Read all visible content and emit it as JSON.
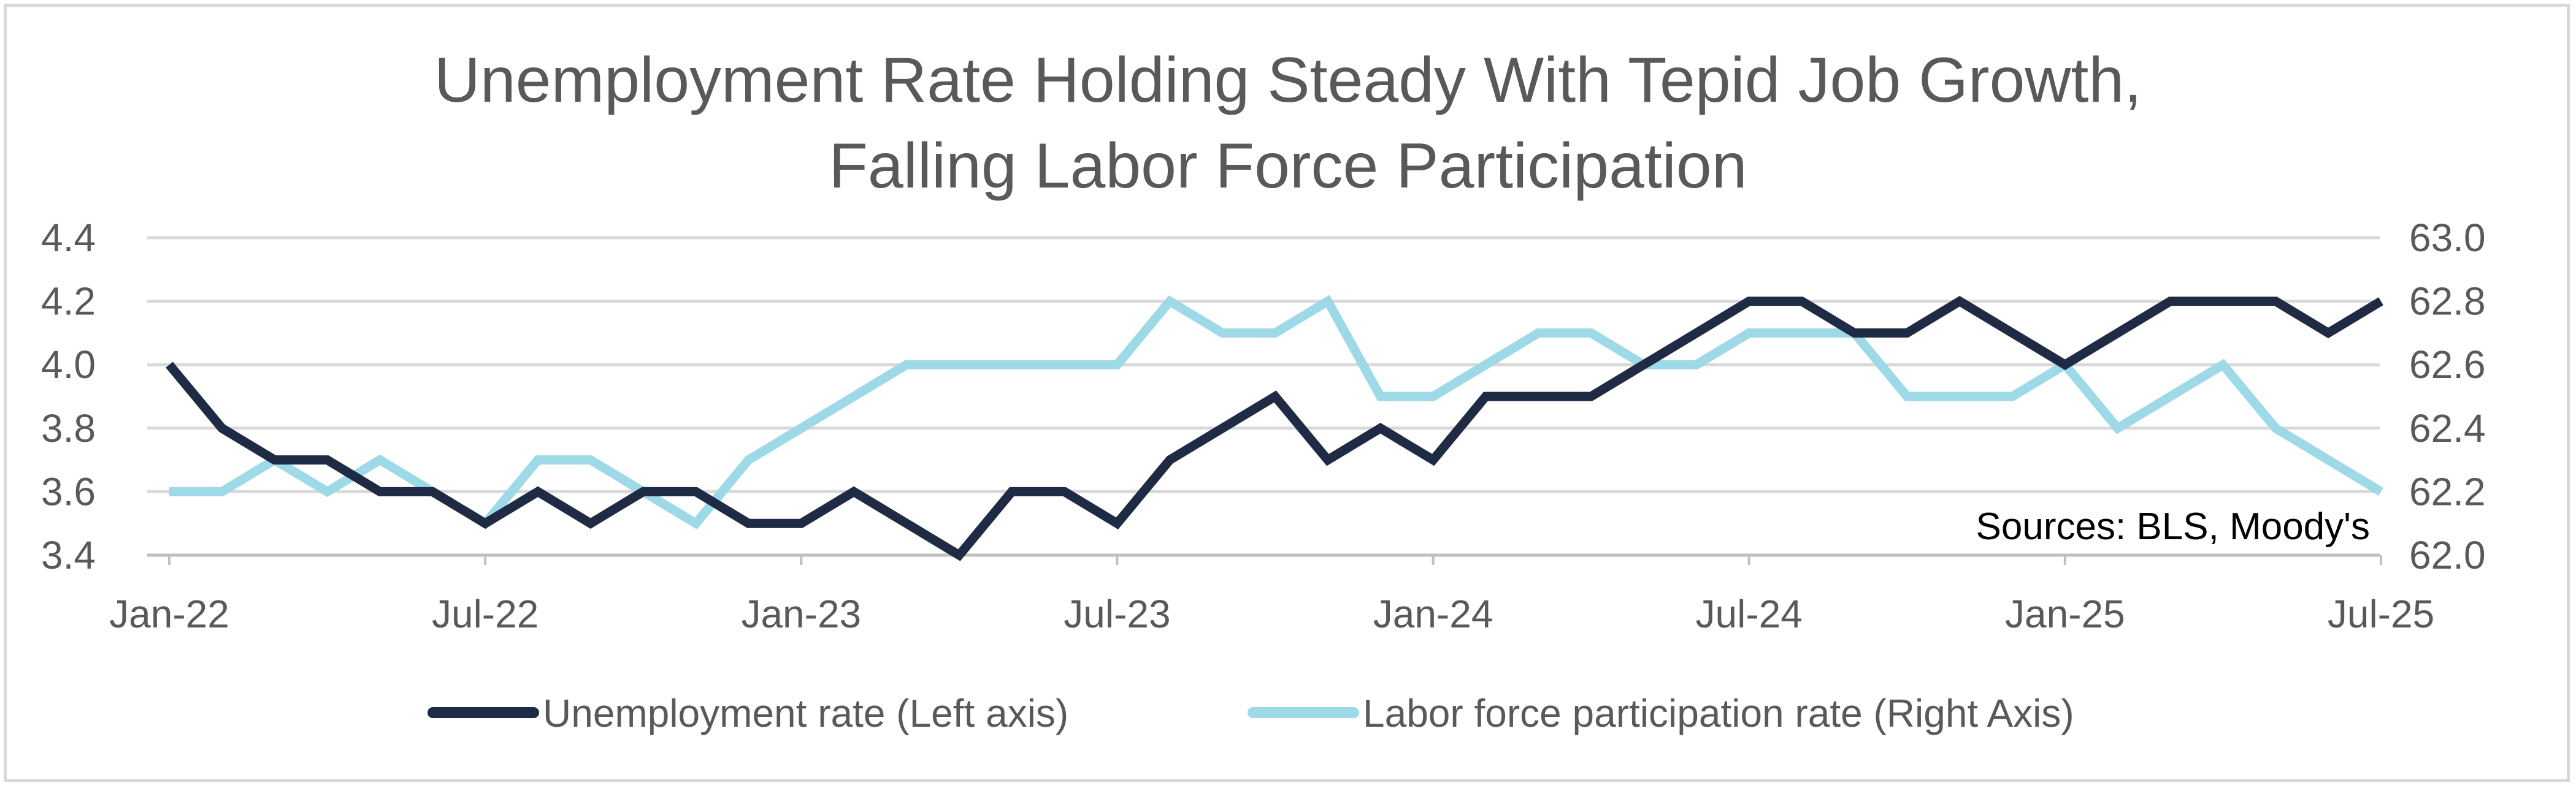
{
  "chart_data": {
    "type": "line",
    "title": [
      "Unemployment Rate Holding Steady With Tepid Job Growth,",
      "Falling Labor Force Participation"
    ],
    "annotation": "Sources: BLS, Moody's",
    "x": [
      "Jan-22",
      "Feb-22",
      "Mar-22",
      "Apr-22",
      "May-22",
      "Jun-22",
      "Jul-22",
      "Aug-22",
      "Sep-22",
      "Oct-22",
      "Nov-22",
      "Dec-22",
      "Jan-23",
      "Feb-23",
      "Mar-23",
      "Apr-23",
      "May-23",
      "Jun-23",
      "Jul-23",
      "Aug-23",
      "Sep-23",
      "Oct-23",
      "Nov-23",
      "Dec-23",
      "Jan-24",
      "Feb-24",
      "Mar-24",
      "Apr-24",
      "May-24",
      "Jun-24",
      "Jul-24",
      "Aug-24",
      "Sep-24",
      "Oct-24",
      "Nov-24",
      "Dec-24",
      "Jan-25",
      "Feb-25",
      "Mar-25",
      "Apr-25",
      "May-25",
      "Jun-25",
      "Jul-25"
    ],
    "x_tick_labels": [
      "Jan-22",
      "Jul-22",
      "Jan-23",
      "Jul-23",
      "Jan-24",
      "Jul-24",
      "Jan-25",
      "Jul-25"
    ],
    "series": [
      {
        "name": "Unemployment rate (Left axis)",
        "axis": "left",
        "color": "#1f2a44",
        "values": [
          4.0,
          3.8,
          3.7,
          3.7,
          3.6,
          3.6,
          3.5,
          3.6,
          3.5,
          3.6,
          3.6,
          3.5,
          3.5,
          3.6,
          3.5,
          3.4,
          3.6,
          3.6,
          3.5,
          3.7,
          3.8,
          3.9,
          3.7,
          3.8,
          3.7,
          3.9,
          3.9,
          3.9,
          4.0,
          4.1,
          4.2,
          4.2,
          4.1,
          4.1,
          4.2,
          4.1,
          4.0,
          4.1,
          4.2,
          4.2,
          4.2,
          4.1,
          4.2
        ]
      },
      {
        "name": "Labor force participation rate (Right Axis)",
        "axis": "right",
        "color": "#9dd9e6",
        "values": [
          62.2,
          62.2,
          62.3,
          62.2,
          62.3,
          62.2,
          62.1,
          62.3,
          62.3,
          62.2,
          62.1,
          62.3,
          62.4,
          62.5,
          62.6,
          62.6,
          62.6,
          62.6,
          62.6,
          62.8,
          62.7,
          62.7,
          62.8,
          62.5,
          62.5,
          62.6,
          62.7,
          62.7,
          62.6,
          62.6,
          62.7,
          62.7,
          62.7,
          62.5,
          62.5,
          62.5,
          62.6,
          62.4,
          62.5,
          62.6,
          62.4,
          62.3,
          62.2
        ]
      }
    ],
    "y_left": {
      "ylim": [
        3.4,
        4.4
      ],
      "ticks": [
        "3.4",
        "3.6",
        "3.8",
        "4.0",
        "4.2",
        "4.4"
      ]
    },
    "y_right": {
      "ylim": [
        62.0,
        63.0
      ],
      "ticks": [
        "62.0",
        "62.2",
        "62.4",
        "62.6",
        "62.8",
        "63.0"
      ]
    },
    "grid": true,
    "legend_position": "bottom"
  }
}
